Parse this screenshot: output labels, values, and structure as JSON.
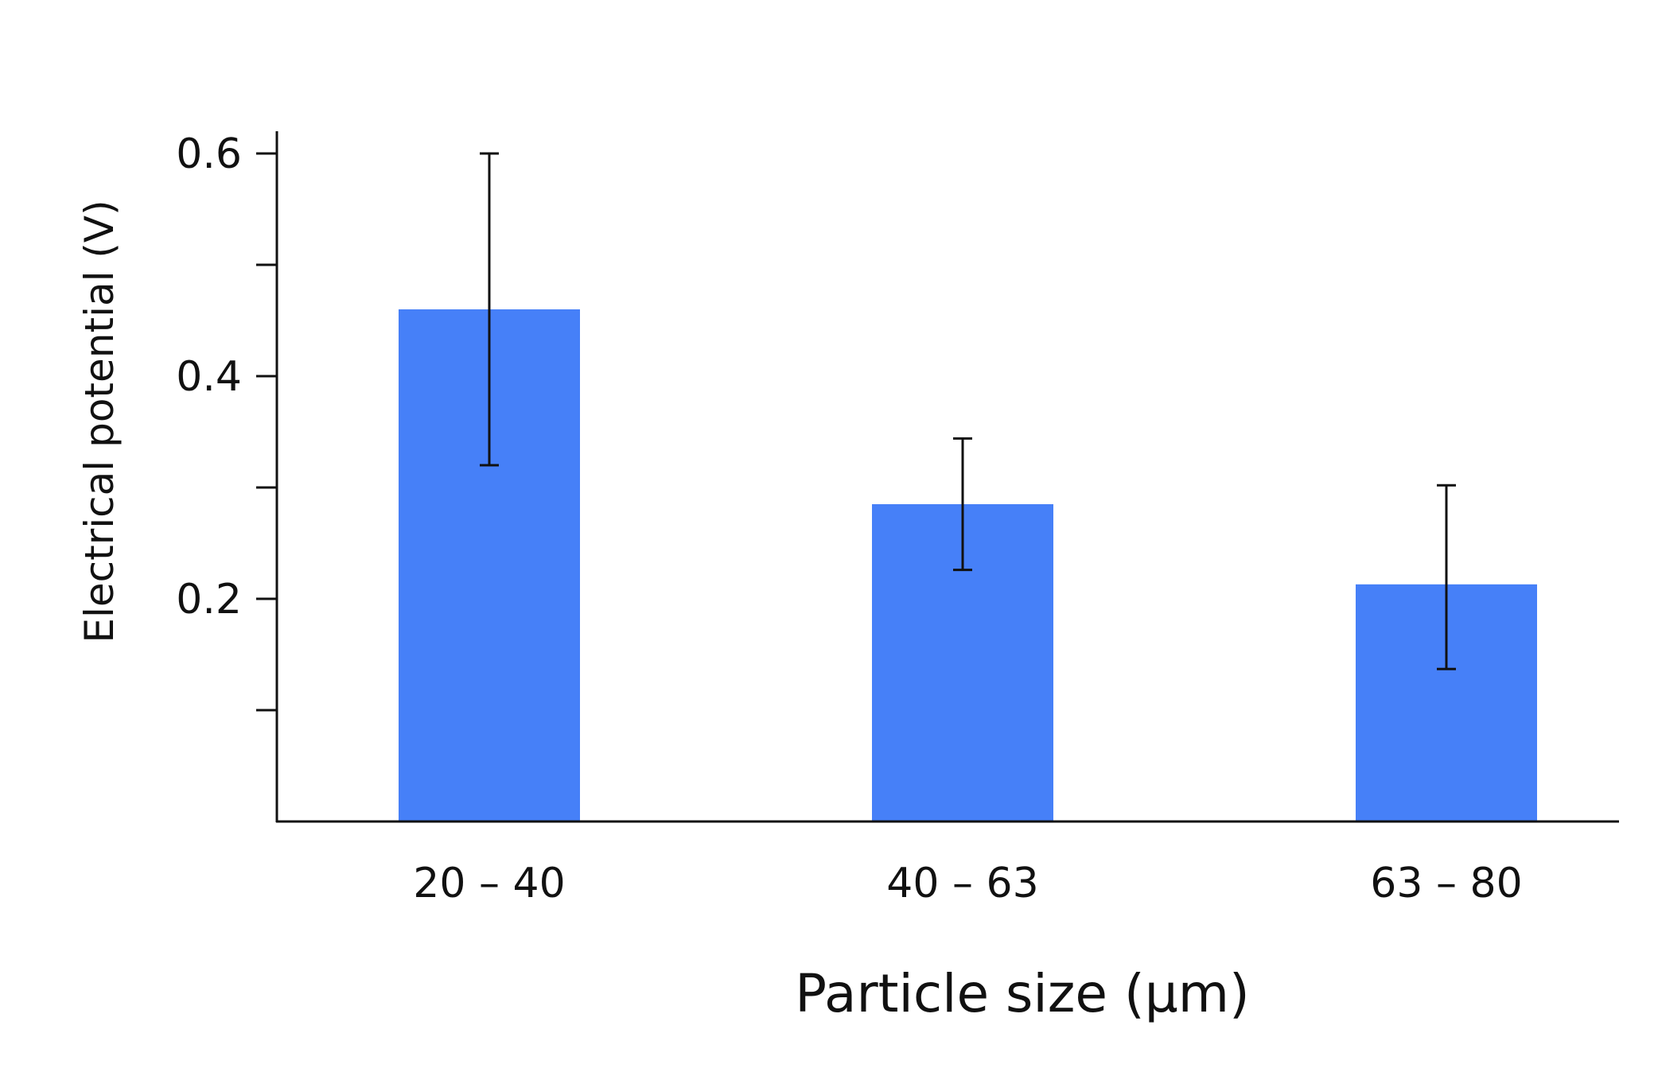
{
  "chart_data": {
    "type": "bar",
    "xlabel": "Particle size  (μm)",
    "ylabel": "Electrical potential  (V)",
    "categories": [
      "20 – 40",
      "40 – 63",
      "63 – 80"
    ],
    "values": [
      0.46,
      0.285,
      0.213
    ],
    "error_low": [
      0.32,
      0.226,
      0.137
    ],
    "error_high": [
      0.6,
      0.344,
      0.302
    ],
    "ylim": [
      0,
      0.62
    ],
    "yticks": [
      0.2,
      0.4,
      0.6
    ],
    "yticks_minor": [
      0.1,
      0.3,
      0.5
    ],
    "ytick_labels": [
      "0.2",
      "0.4",
      "0.6"
    ],
    "bar_color": "#4680F8",
    "grid": false
  }
}
